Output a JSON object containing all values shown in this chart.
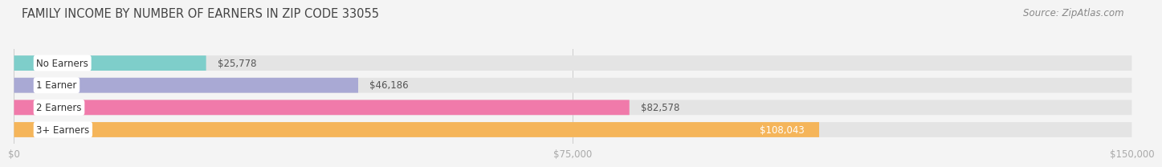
{
  "title": "FAMILY INCOME BY NUMBER OF EARNERS IN ZIP CODE 33055",
  "source": "Source: ZipAtlas.com",
  "categories": [
    "No Earners",
    "1 Earner",
    "2 Earners",
    "3+ Earners"
  ],
  "values": [
    25778,
    46186,
    82578,
    108043
  ],
  "bar_colors": [
    "#7ececa",
    "#a9a9d4",
    "#f07aaa",
    "#f5b55a"
  ],
  "bar_labels": [
    "$25,778",
    "$46,186",
    "$82,578",
    "$108,043"
  ],
  "x_ticks": [
    0,
    75000,
    150000
  ],
  "x_tick_labels": [
    "$0",
    "$75,000",
    "$150,000"
  ],
  "xlim": [
    0,
    150000
  ],
  "background_color": "#f4f4f4",
  "bar_background_color": "#e4e4e4",
  "title_fontsize": 10.5,
  "source_fontsize": 8.5,
  "cat_label_fontsize": 8.5,
  "val_label_fontsize": 8.5,
  "tick_fontsize": 8.5,
  "bar_height": 0.68,
  "bar_gap": 1.0,
  "inside_label_threshold": 105000
}
